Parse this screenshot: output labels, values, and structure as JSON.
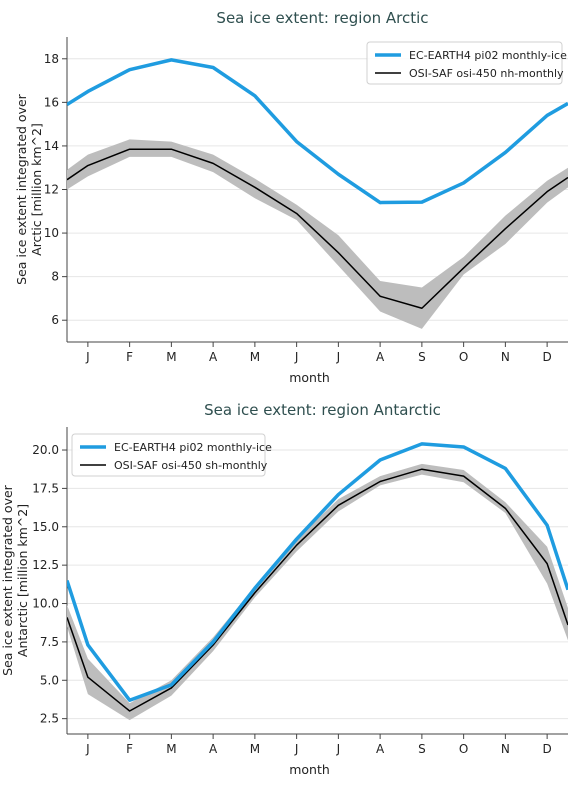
{
  "chart_data": [
    {
      "type": "line",
      "title": "Sea ice extent: region Arctic",
      "xlabel": "month",
      "ylabel_lines": [
        "Sea ice extent integrated over",
        "Arctic [million km^2]"
      ],
      "categories": [
        "J",
        "F",
        "M",
        "A",
        "M",
        "J",
        "J",
        "A",
        "S",
        "O",
        "N",
        "D"
      ],
      "x_range": [
        0.5,
        12.5
      ],
      "ylim": [
        5.0,
        19.0
      ],
      "yticks": [
        6,
        8,
        10,
        12,
        14,
        16,
        18
      ],
      "ytick_labels": [
        "6",
        "8",
        "10",
        "12",
        "14",
        "16",
        "18"
      ],
      "legend": "top-right",
      "grid": "horizontal",
      "series": [
        {
          "name": "EC-EARTH4 pi02 monthly-ice",
          "color": "#1f9ce0",
          "x": [
            0.5,
            1,
            2,
            3,
            4,
            5,
            6,
            7,
            8,
            9,
            10,
            11,
            12,
            12.5
          ],
          "values": [
            15.9,
            16.5,
            17.5,
            17.95,
            17.6,
            16.3,
            14.2,
            12.7,
            11.4,
            11.42,
            12.3,
            13.7,
            15.4,
            15.95
          ]
        },
        {
          "name": "OSI-SAF osi-450 nh-monthly",
          "color": "#000000",
          "x": [
            0.5,
            1,
            2,
            3,
            4,
            5,
            6,
            7,
            8,
            9,
            10,
            11,
            12,
            12.5
          ],
          "values": [
            12.45,
            13.1,
            13.85,
            13.85,
            13.2,
            12.1,
            10.9,
            9.1,
            7.1,
            6.55,
            8.4,
            10.2,
            11.9,
            12.55
          ],
          "band_low": [
            12.0,
            12.6,
            13.5,
            13.5,
            12.8,
            11.6,
            10.6,
            8.5,
            6.4,
            5.6,
            8.1,
            9.5,
            11.4,
            12.1
          ],
          "band_high": [
            12.9,
            13.6,
            14.3,
            14.2,
            13.6,
            12.5,
            11.3,
            9.9,
            7.8,
            7.5,
            8.9,
            10.8,
            12.4,
            13.0
          ],
          "band_color": "#bdbdbd"
        }
      ]
    },
    {
      "type": "line",
      "title": "Sea ice extent: region Antarctic",
      "xlabel": "month",
      "ylabel_lines": [
        "Sea ice extent integrated over",
        "Antarctic [million km^2]"
      ],
      "categories": [
        "J",
        "F",
        "M",
        "A",
        "M",
        "J",
        "J",
        "A",
        "S",
        "O",
        "N",
        "D"
      ],
      "x_range": [
        0.5,
        12.5
      ],
      "ylim": [
        1.5,
        21.5
      ],
      "yticks": [
        2.5,
        5.0,
        7.5,
        10.0,
        12.5,
        15.0,
        17.5,
        20.0
      ],
      "ytick_labels": [
        "2.5",
        "5.0",
        "7.5",
        "10.0",
        "12.5",
        "15.0",
        "17.5",
        "20.0"
      ],
      "legend": "top-left",
      "grid": "horizontal",
      "series": [
        {
          "name": "EC-EARTH4 pi02 monthly-ice",
          "color": "#1f9ce0",
          "x": [
            0.5,
            1,
            2,
            3,
            4,
            5,
            6,
            7,
            8,
            9,
            10,
            11,
            12,
            12.5
          ],
          "values": [
            11.5,
            7.3,
            3.7,
            4.7,
            7.5,
            11.0,
            14.2,
            17.1,
            19.35,
            20.4,
            20.2,
            18.8,
            15.1,
            10.9
          ],
          "marker": "line"
        },
        {
          "name": "OSI-SAF osi-450 sh-monthly",
          "color": "#000000",
          "x": [
            0.5,
            1,
            2,
            3,
            4,
            5,
            6,
            7,
            8,
            9,
            10,
            11,
            12,
            12.5
          ],
          "values": [
            9.1,
            5.2,
            3.0,
            4.5,
            7.3,
            10.7,
            13.8,
            16.4,
            17.95,
            18.75,
            18.3,
            16.2,
            12.6,
            8.6
          ],
          "band_low": [
            8.5,
            4.1,
            2.4,
            4.0,
            6.9,
            10.4,
            13.4,
            16.0,
            17.7,
            18.4,
            17.9,
            15.9,
            11.3,
            7.6
          ],
          "band_high": [
            9.9,
            6.4,
            3.5,
            5.0,
            7.8,
            11.1,
            14.2,
            16.8,
            18.3,
            19.1,
            18.7,
            16.6,
            13.7,
            9.7
          ],
          "band_color": "#bdbdbd"
        }
      ]
    }
  ]
}
